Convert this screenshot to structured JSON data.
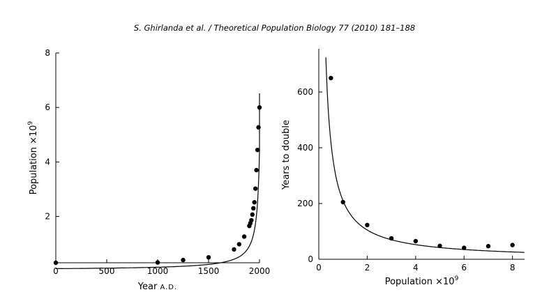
{
  "header": {
    "citation": "S. Ghirlanda et al. / Theoretical Population Biology 77 (2010) 181–188"
  },
  "chart_data": [
    {
      "type": "scatter",
      "title": "",
      "xlabel": "Year",
      "xlabel_suffix": "A.D.",
      "ylabel": "Population ×10",
      "ylabel_sup": "9",
      "xlim": [
        0,
        2000
      ],
      "ylim": [
        0.3,
        8
      ],
      "xticks": [
        0,
        500,
        1000,
        1500,
        2000
      ],
      "yticks": [
        2,
        4,
        6,
        8
      ],
      "points": {
        "x": [
          0,
          1000,
          1250,
          1500,
          1750,
          1800,
          1850,
          1900,
          1910,
          1920,
          1930,
          1940,
          1950,
          1960,
          1970,
          1980,
          1990,
          2000
        ],
        "y": [
          0.3,
          0.31,
          0.4,
          0.5,
          0.79,
          0.98,
          1.26,
          1.65,
          1.75,
          1.86,
          2.07,
          2.3,
          2.52,
          3.02,
          3.7,
          4.44,
          5.27,
          6.0
        ]
      },
      "fit_curve": "hyperbolic growth",
      "grid": false
    },
    {
      "type": "scatter",
      "title": "",
      "xlabel": "Population ×10",
      "xlabel_sup": "9",
      "ylabel": "Years to double",
      "xlim": [
        0,
        8.5
      ],
      "ylim": [
        0,
        750
      ],
      "xticks": [
        0,
        2,
        4,
        6,
        8
      ],
      "yticks": [
        0,
        200,
        400,
        600
      ],
      "points": {
        "x": [
          0.5,
          1,
          2,
          3,
          4,
          5,
          6,
          7,
          8
        ],
        "y": [
          650,
          205,
          123,
          75,
          65,
          48,
          41,
          47,
          51
        ]
      },
      "fit_curve": "y = 210 / x",
      "grid": false
    }
  ]
}
